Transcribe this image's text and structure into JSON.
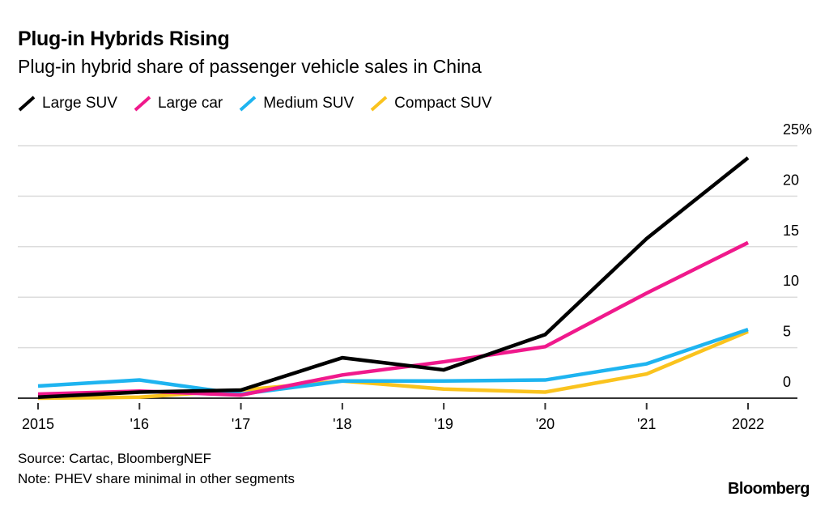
{
  "header": {
    "title": "Plug-in Hybrids Rising",
    "subtitle": "Plug-in hybrid share of passenger vehicle sales in China"
  },
  "footer": {
    "source": "Source: Cartac, BloombergNEF",
    "note": "Note: PHEV share minimal in other segments",
    "brand": "Bloomberg"
  },
  "chart_data": {
    "type": "line",
    "title": "Plug-in Hybrids Rising",
    "subtitle": "Plug-in hybrid share of passenger vehicle sales in China",
    "x": [
      2015,
      2016,
      2017,
      2018,
      2019,
      2020,
      2021,
      2022
    ],
    "x_tick_labels": [
      "2015",
      "'16",
      "'17",
      "'18",
      "'19",
      "'20",
      "'21",
      "2022"
    ],
    "y_tick_labels": [
      "0",
      "5",
      "10",
      "15",
      "20",
      "25%"
    ],
    "y_ticks": [
      0,
      5,
      10,
      15,
      20,
      25
    ],
    "ylim": [
      0,
      25
    ],
    "grid": true,
    "legend_position": "top-left",
    "series": [
      {
        "name": "Large SUV",
        "color": "#000000",
        "values": [
          0.1,
          0.6,
          0.8,
          4.0,
          2.8,
          6.3,
          15.8,
          23.8
        ]
      },
      {
        "name": "Large car",
        "color": "#f0198c",
        "values": [
          0.4,
          0.7,
          0.3,
          2.3,
          3.6,
          5.1,
          10.4,
          15.4
        ]
      },
      {
        "name": "Medium SUV",
        "color": "#1eb4f0",
        "values": [
          1.2,
          1.8,
          0.4,
          1.7,
          1.7,
          1.8,
          3.4,
          6.8
        ]
      },
      {
        "name": "Compact SUV",
        "color": "#fac31e",
        "values": [
          0.0,
          0.1,
          0.8,
          1.7,
          0.9,
          0.6,
          2.4,
          6.6
        ]
      }
    ]
  }
}
